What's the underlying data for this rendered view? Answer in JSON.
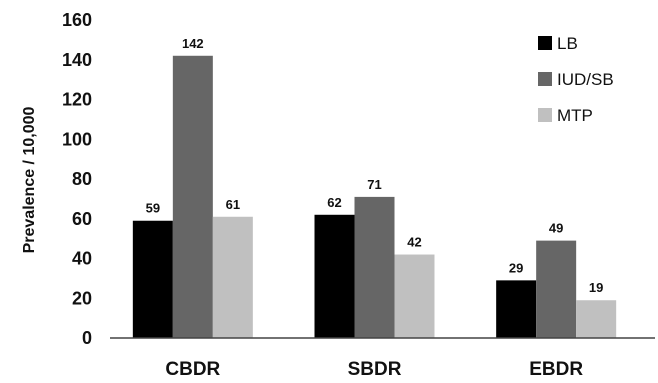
{
  "chart_data": {
    "type": "bar",
    "title": "",
    "xlabel": "",
    "ylabel": "Prevalence / 10,000",
    "ylim": [
      0,
      160
    ],
    "yticks": [
      0,
      20,
      40,
      60,
      80,
      100,
      120,
      140,
      160
    ],
    "grid": false,
    "legend_position": "top-right",
    "categories": [
      "CBDR",
      "SBDR",
      "EBDR"
    ],
    "series": [
      {
        "name": "LB",
        "color": "#000000",
        "values": [
          59,
          62,
          29
        ]
      },
      {
        "name": "IUD/SB",
        "color": "#666666",
        "values": [
          142,
          71,
          49
        ]
      },
      {
        "name": "MTP",
        "color": "#c0c0c0",
        "values": [
          61,
          42,
          19
        ]
      }
    ]
  }
}
